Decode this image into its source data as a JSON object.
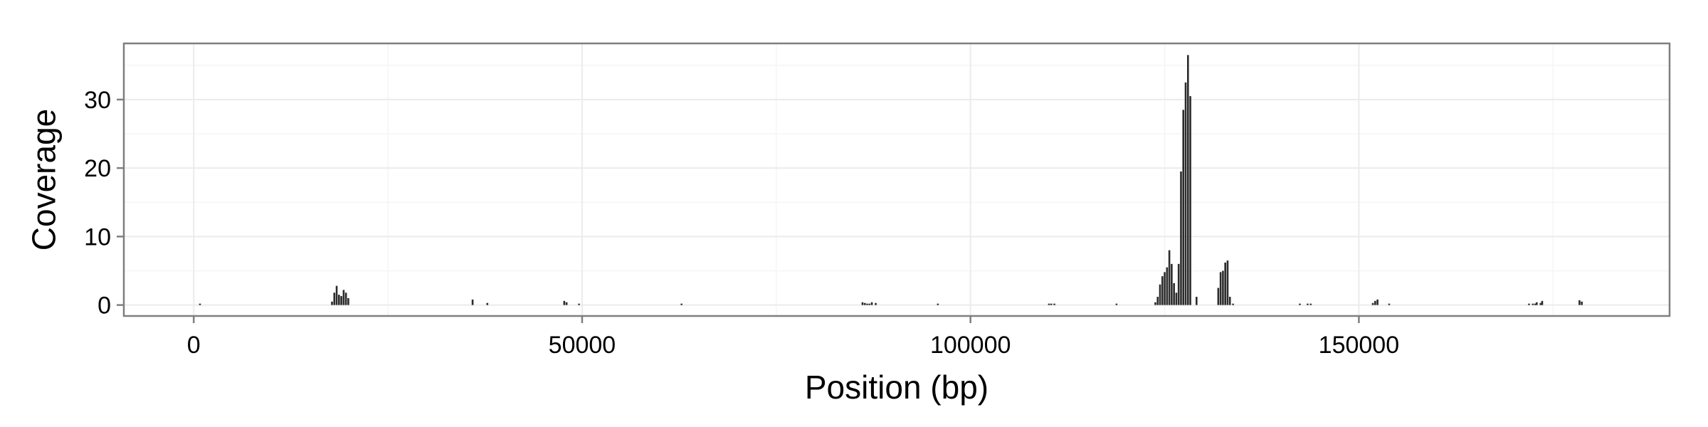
{
  "chart_data": {
    "type": "bar",
    "title": "",
    "xlabel": "Position (bp)",
    "ylabel": "Coverage",
    "xlim": [
      -9000,
      190000
    ],
    "ylim": [
      -1.6,
      38.2
    ],
    "x_ticks": [
      0,
      50000,
      100000,
      150000
    ],
    "x_tick_labels": [
      "0",
      "50000",
      "100000",
      "150000"
    ],
    "y_ticks": [
      0,
      10,
      20,
      30
    ],
    "y_tick_labels": [
      "0",
      "10",
      "20",
      "30"
    ],
    "grid": true,
    "legend": "none",
    "series": [
      {
        "x": [
          800,
          17800,
          18100,
          18400,
          18700,
          19000,
          19300,
          19600,
          19900,
          35900,
          37800,
          47700,
          48000,
          49600,
          62800,
          86100,
          86400,
          86700,
          87000,
          87300,
          87800,
          95800,
          110100,
          110400,
          110800,
          118800,
          123800,
          124100,
          124400,
          124700,
          125000,
          125300,
          125600,
          125900,
          126200,
          126500,
          126800,
          127100,
          127400,
          127700,
          128000,
          128300,
          129100,
          131900,
          132200,
          132500,
          132800,
          133100,
          133400,
          133800,
          142400,
          143400,
          143800,
          151800,
          152100,
          152400,
          153900,
          171900,
          172400,
          172700,
          172900,
          173400,
          173600,
          178400,
          178700
        ],
        "values": [
          0.2,
          0.5,
          1.8,
          2.8,
          1.5,
          1.3,
          2.2,
          1.8,
          1.0,
          0.8,
          0.3,
          0.6,
          0.4,
          0.2,
          0.2,
          0.4,
          0.3,
          0.2,
          0.2,
          0.4,
          0.3,
          0.2,
          0.2,
          0.2,
          0.2,
          0.2,
          0.4,
          1.2,
          3.0,
          4.2,
          4.8,
          5.5,
          8.0,
          6.0,
          3.2,
          1.8,
          6.0,
          19.5,
          28.5,
          32.5,
          36.5,
          30.5,
          1.2,
          2.5,
          4.8,
          5.0,
          6.2,
          6.5,
          1.2,
          0.2,
          0.2,
          0.2,
          0.2,
          0.3,
          0.6,
          0.8,
          0.2,
          0.2,
          0.2,
          0.2,
          0.4,
          0.3,
          0.6,
          0.7,
          0.5
        ]
      }
    ]
  },
  "colors": {
    "bar": "#2b2b2b",
    "panel_border": "#7f7f7f",
    "grid_major": "#ebebeb",
    "grid_minor": "#f5f5f5",
    "background": "#ffffff"
  }
}
